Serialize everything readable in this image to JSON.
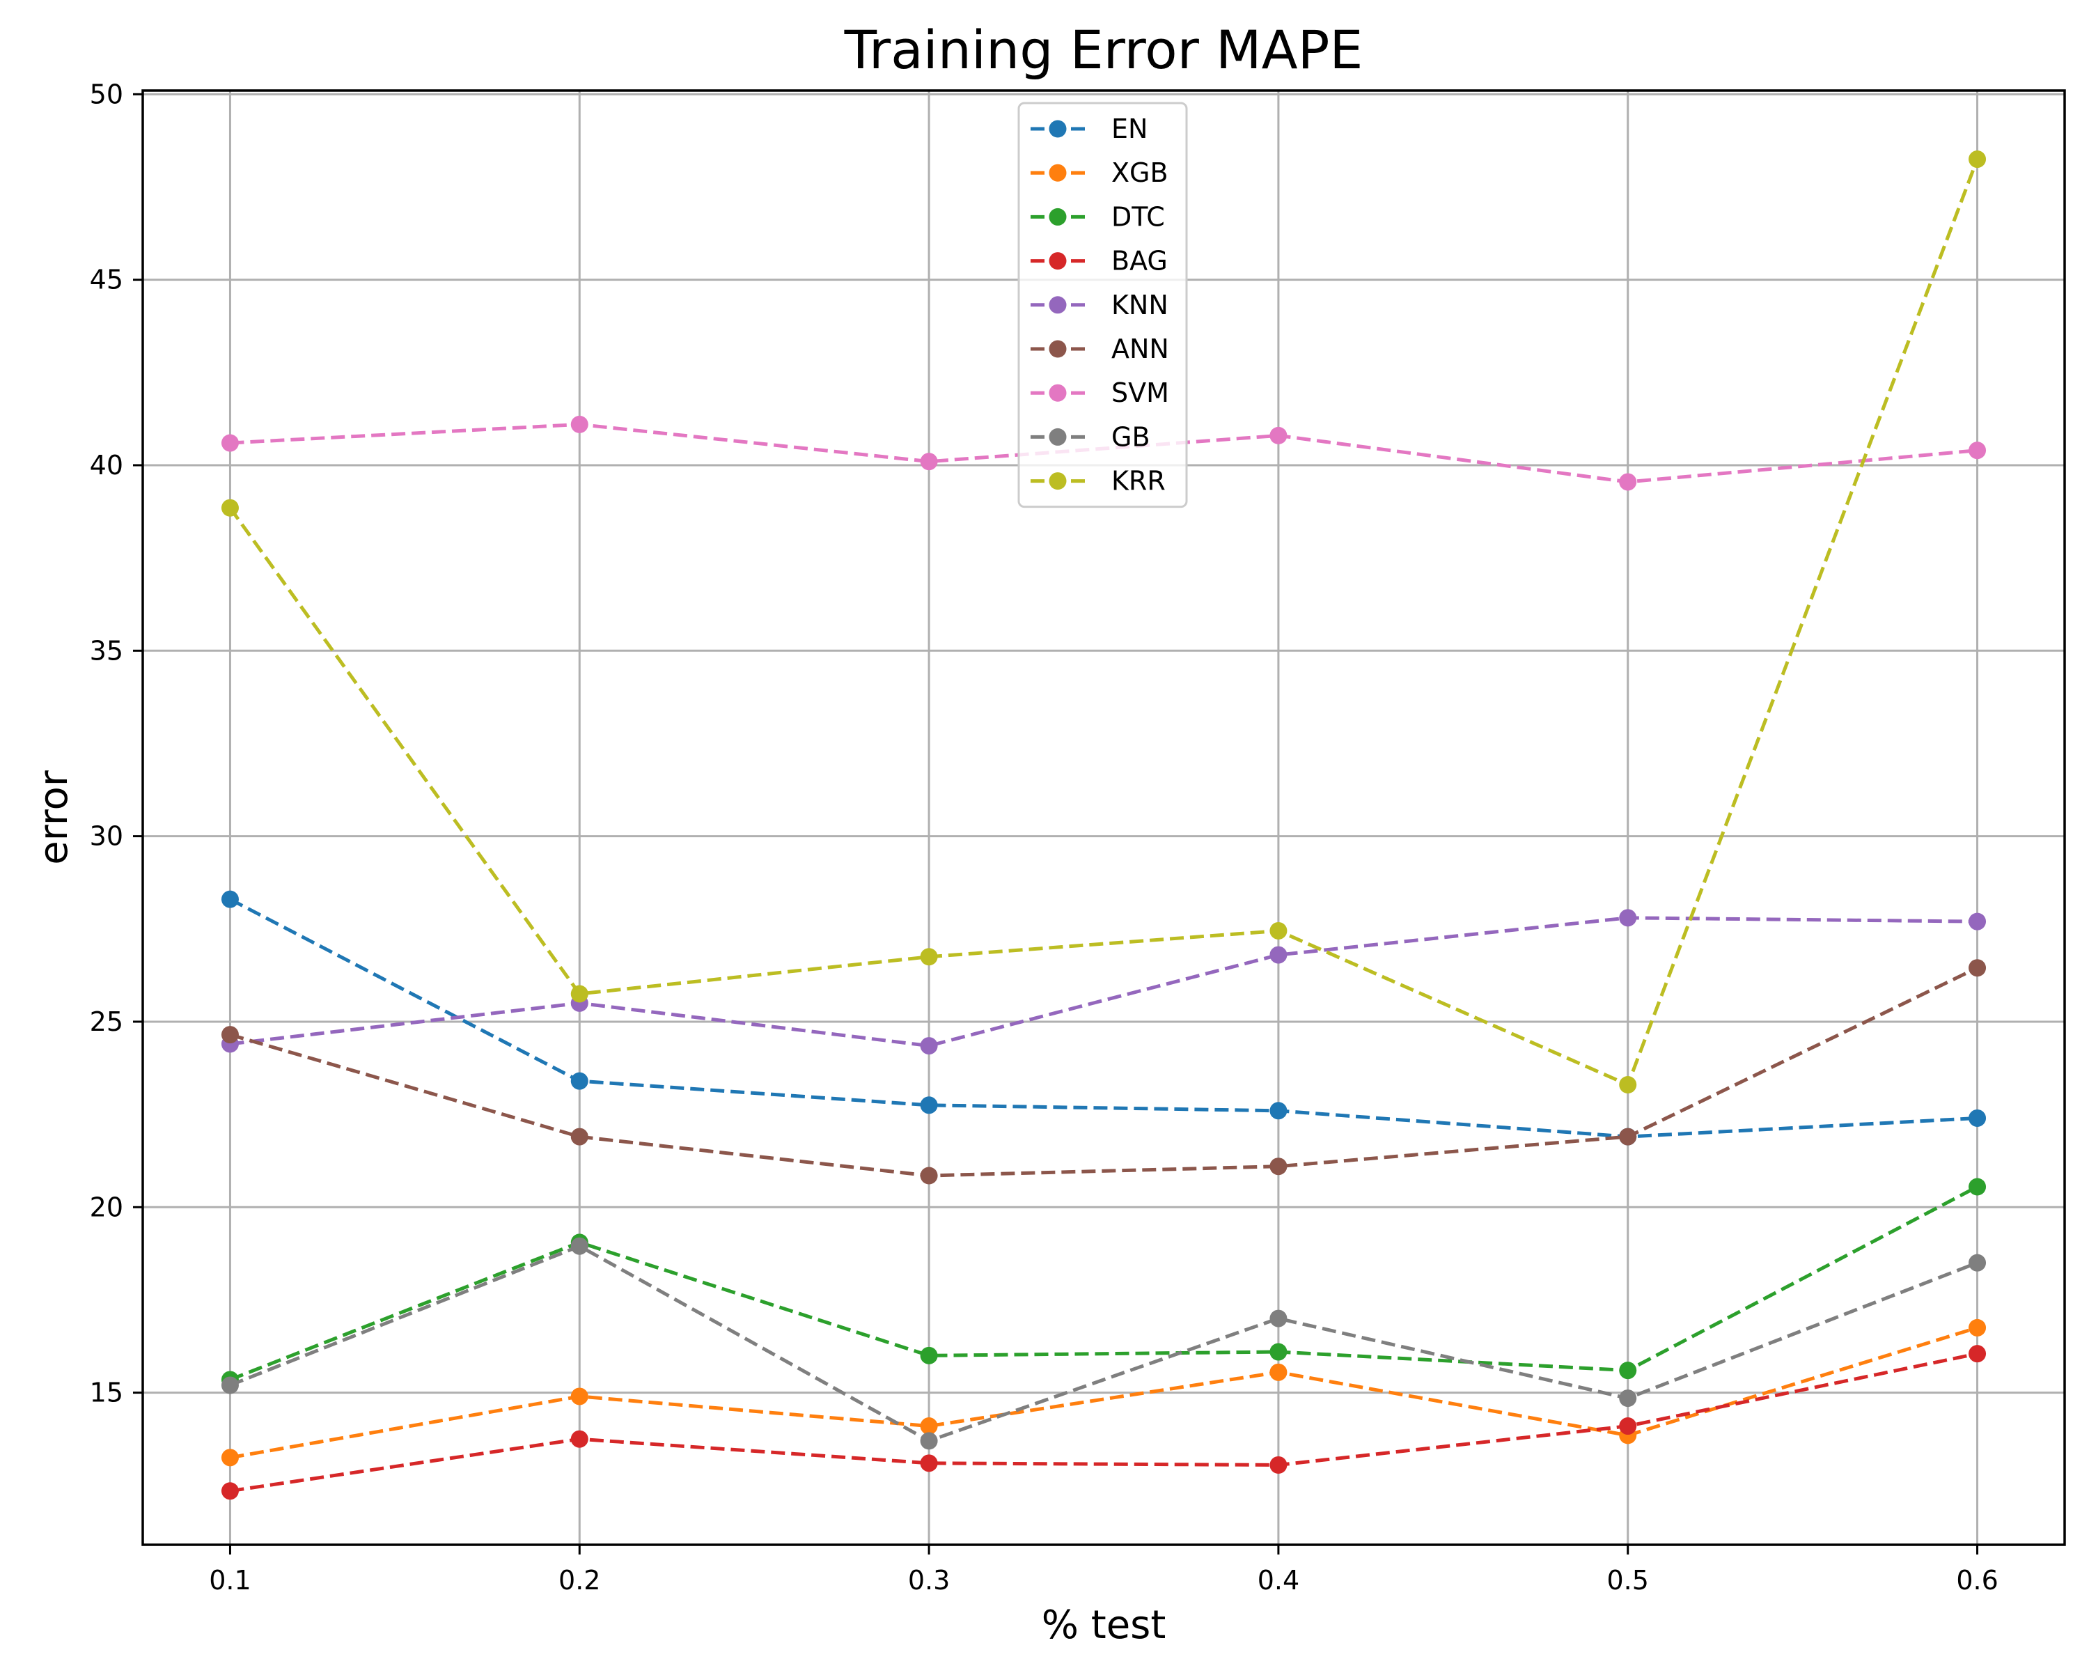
{
  "chart_data": {
    "type": "line",
    "title": "Training Error MAPE",
    "xlabel": "% test",
    "ylabel": "error",
    "x": [
      0.1,
      0.2,
      0.3,
      0.4,
      0.5,
      0.6
    ],
    "x_tick_labels": [
      "0.1",
      "0.2",
      "0.3",
      "0.4",
      "0.5",
      "0.6"
    ],
    "y_ticks": [
      15,
      20,
      25,
      30,
      35,
      40,
      45,
      50
    ],
    "y_tick_labels": [
      "15",
      "20",
      "25",
      "30",
      "35",
      "40",
      "45",
      "50"
    ],
    "xlim": [
      0.075,
      0.625
    ],
    "ylim": [
      10.9,
      50.1
    ],
    "grid": true,
    "legend_position": "top-center",
    "line_style": "dashed",
    "marker": "circle",
    "series": [
      {
        "name": "EN",
        "color": "#1f77b4",
        "values": [
          28.3,
          23.4,
          22.75,
          22.6,
          21.9,
          22.4
        ]
      },
      {
        "name": "XGB",
        "color": "#ff7f0e",
        "values": [
          13.25,
          14.9,
          14.1,
          15.55,
          13.85,
          16.75
        ]
      },
      {
        "name": "DTC",
        "color": "#2ca02c",
        "values": [
          15.35,
          19.05,
          16.0,
          16.1,
          15.6,
          20.55
        ]
      },
      {
        "name": "BAG",
        "color": "#d62728",
        "values": [
          12.35,
          13.75,
          13.1,
          13.05,
          14.1,
          16.05
        ]
      },
      {
        "name": "KNN",
        "color": "#9467bd",
        "values": [
          24.4,
          25.5,
          24.35,
          26.8,
          27.8,
          27.7
        ]
      },
      {
        "name": "ANN",
        "color": "#8c564b",
        "values": [
          24.65,
          21.9,
          20.85,
          21.1,
          21.9,
          26.45
        ]
      },
      {
        "name": "SVM",
        "color": "#e377c2",
        "values": [
          40.6,
          41.1,
          40.1,
          40.8,
          39.55,
          40.4
        ]
      },
      {
        "name": "GB",
        "color": "#7f7f7f",
        "values": [
          15.2,
          18.95,
          13.7,
          17.0,
          14.85,
          18.5
        ]
      },
      {
        "name": "KRR",
        "color": "#bcbd22",
        "values": [
          38.85,
          25.75,
          26.75,
          27.45,
          23.3,
          48.25
        ]
      }
    ]
  }
}
